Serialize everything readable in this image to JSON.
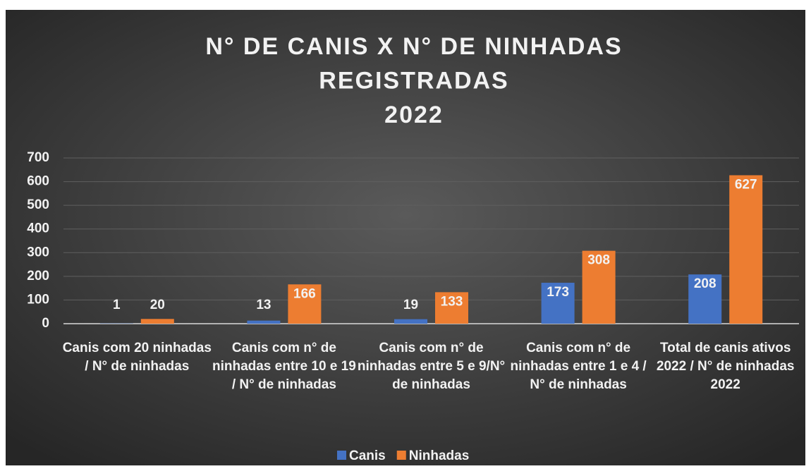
{
  "chart_data": {
    "type": "bar",
    "title": [
      "N° DE CANIS X N° DE NINHADAS",
      "REGISTRADAS",
      "2022"
    ],
    "categories": [
      "Canis com 20 ninhadas / N° de ninhadas",
      "Canis com n° de ninhadas entre 10 e 19 / N° de ninhadas",
      "Canis com n° de ninhadas entre 5 e 9/N° de ninhadas",
      "Canis com n° de ninhadas entre 1 e 4 / N° de ninhadas",
      "Total de canis ativos 2022 / N° de ninhadas 2022"
    ],
    "series": [
      {
        "name": "Canis",
        "color": "#4472c4",
        "values": [
          1,
          13,
          19,
          173,
          208
        ]
      },
      {
        "name": "Ninhadas",
        "color": "#ed7d31",
        "values": [
          20,
          166,
          133,
          308,
          627
        ]
      }
    ],
    "ylim": [
      0,
      700
    ],
    "yticks": [
      0,
      100,
      200,
      300,
      400,
      500,
      600,
      700
    ],
    "grid": true,
    "legend": "bottom"
  }
}
